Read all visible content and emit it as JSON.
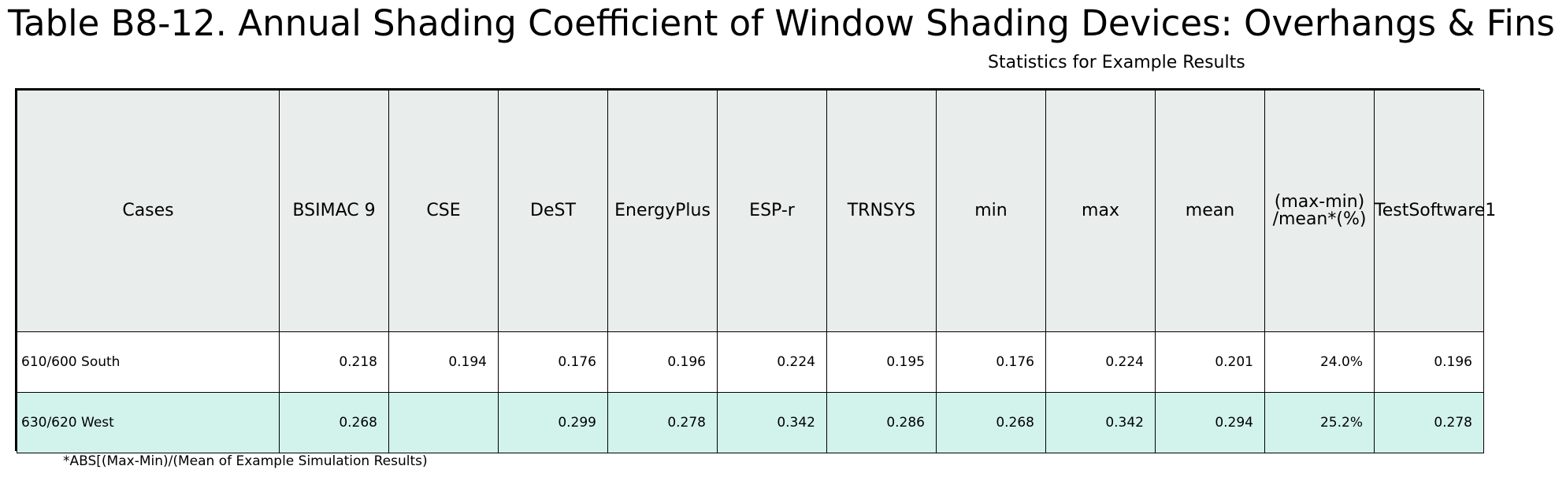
{
  "title": "Table B8-12. Annual Shading Coefficient of Window Shading Devices: Overhangs & Fins",
  "subtitle": "Statistics for Example Results",
  "table": {
    "headers": [
      "Cases",
      "BSIMAC 9",
      "CSE",
      "DeST",
      "EnergyPlus",
      "ESP-r",
      "TRNSYS",
      "min",
      "max",
      "mean",
      "(max-min) /mean*(%)",
      "TestSoftware1"
    ],
    "rows": [
      [
        "610/600 South",
        "0.218",
        "0.194",
        "0.176",
        "0.196",
        "0.224",
        "0.195",
        "0.176",
        "0.224",
        "0.201",
        "24.0%",
        "0.196"
      ],
      [
        "630/620 West",
        "0.268",
        "",
        "0.299",
        "0.278",
        "0.342",
        "0.286",
        "0.268",
        "0.342",
        "0.294",
        "25.2%",
        "0.278"
      ]
    ]
  },
  "footnote": "*ABS[(Max-Min)/(Mean of Example Simulation Results)",
  "colors": {
    "header_bg": "#e9edec",
    "row_alt_bg": "#d2f3ec",
    "border": "#000000"
  }
}
